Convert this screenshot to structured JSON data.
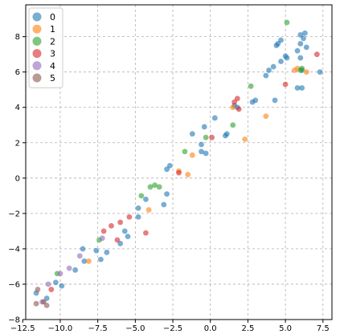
{
  "chart_data": {
    "type": "scatter",
    "title": "",
    "xlabel": "",
    "ylabel": "",
    "xlim": [
      -12.3,
      8.1
    ],
    "ylim": [
      -8,
      9.8
    ],
    "xticks": [
      -12.5,
      -10.0,
      -7.5,
      -5.0,
      -2.5,
      0.0,
      2.5,
      5.0,
      7.5
    ],
    "xtick_labels": [
      "−12.5",
      "−10.0",
      "−7.5",
      "−5.0",
      "−2.5",
      "0.0",
      "2.5",
      "5.0",
      "7.5"
    ],
    "yticks": [
      -8,
      -6,
      -4,
      -2,
      0,
      2,
      4,
      6,
      8
    ],
    "ytick_labels": [
      "−8",
      "−6",
      "−4",
      "−2",
      "0",
      "2",
      "4",
      "6",
      "8"
    ],
    "grid": true,
    "legend_position": "top-left",
    "series": [
      {
        "name": "0",
        "color": "#1f77b4",
        "points": [
          [
            -11.6,
            -6.5
          ],
          [
            -10.9,
            -6.8
          ],
          [
            -10.3,
            -5.9
          ],
          [
            -9.9,
            -6.1
          ],
          [
            -9.0,
            -5.2
          ],
          [
            -8.5,
            -4.0
          ],
          [
            -8.4,
            -4.7
          ],
          [
            -7.6,
            -4.1
          ],
          [
            -7.3,
            -4.6
          ],
          [
            -6.9,
            -4.2
          ],
          [
            -6.0,
            -3.7
          ],
          [
            -5.7,
            -3.0
          ],
          [
            -5.5,
            -3.3
          ],
          [
            -4.8,
            -2.2
          ],
          [
            -4.8,
            -1.7
          ],
          [
            -4.3,
            -1.2
          ],
          [
            -3.1,
            -1.5
          ],
          [
            -2.9,
            -0.9
          ],
          [
            -2.9,
            0.5
          ],
          [
            -2.7,
            0.7
          ],
          [
            -1.2,
            2.5
          ],
          [
            -0.6,
            1.9
          ],
          [
            -0.6,
            1.5
          ],
          [
            -0.3,
            1.4
          ],
          [
            -0.4,
            2.9
          ],
          [
            0.3,
            3.4
          ],
          [
            1.0,
            2.4
          ],
          [
            1.1,
            2.5
          ],
          [
            1.6,
            4.1
          ],
          [
            1.8,
            4.0
          ],
          [
            2.8,
            4.3
          ],
          [
            3.0,
            4.4
          ],
          [
            3.7,
            5.8
          ],
          [
            3.9,
            6.1
          ],
          [
            4.2,
            6.3
          ],
          [
            4.3,
            4.4
          ],
          [
            4.4,
            7.5
          ],
          [
            4.5,
            7.6
          ],
          [
            4.7,
            6.6
          ],
          [
            4.7,
            7.8
          ],
          [
            5.0,
            6.9
          ],
          [
            5.1,
            6.8
          ],
          [
            5.8,
            5.1
          ],
          [
            5.8,
            7.2
          ],
          [
            6.0,
            6.8
          ],
          [
            6.1,
            6.1
          ],
          [
            6.0,
            7.6
          ],
          [
            6.0,
            8.1
          ],
          [
            6.1,
            5.1
          ],
          [
            6.2,
            7.9
          ],
          [
            6.3,
            8.2
          ],
          [
            6.4,
            7.4
          ],
          [
            7.3,
            6.0
          ]
        ]
      },
      {
        "name": "1",
        "color": "#ff7f0e",
        "points": [
          [
            -8.1,
            -4.7
          ],
          [
            -4.1,
            -1.8
          ],
          [
            -2.1,
            0.4
          ],
          [
            -1.5,
            0.2
          ],
          [
            -1.2,
            1.3
          ],
          [
            1.5,
            4.0
          ],
          [
            2.3,
            2.2
          ],
          [
            3.7,
            3.5
          ],
          [
            5.6,
            6.1
          ],
          [
            5.8,
            6.2
          ],
          [
            6.4,
            6.0
          ]
        ]
      },
      {
        "name": "2",
        "color": "#2ca02c",
        "points": [
          [
            -10.2,
            -5.4
          ],
          [
            -7.4,
            -3.5
          ],
          [
            -4.6,
            -1.0
          ],
          [
            -4.0,
            -0.5
          ],
          [
            -3.7,
            -0.4
          ],
          [
            -3.4,
            -0.5
          ],
          [
            -1.7,
            1.5
          ],
          [
            -0.3,
            2.3
          ],
          [
            1.5,
            3.0
          ],
          [
            2.7,
            5.2
          ],
          [
            5.1,
            8.8
          ],
          [
            6.0,
            6.1
          ],
          [
            6.1,
            6.2
          ]
        ]
      },
      {
        "name": "3",
        "color": "#d62728",
        "points": [
          [
            -10.6,
            -6.3
          ],
          [
            -7.1,
            -3.0
          ],
          [
            -6.6,
            -2.7
          ],
          [
            -6.2,
            -3.5
          ],
          [
            -6.0,
            -2.5
          ],
          [
            -5.4,
            -2.2
          ],
          [
            -4.3,
            -3.1
          ],
          [
            -2.1,
            0.3
          ],
          [
            0.1,
            2.3
          ],
          [
            1.6,
            4.3
          ],
          [
            1.8,
            4.5
          ],
          [
            1.9,
            3.9
          ],
          [
            5.0,
            5.3
          ],
          [
            7.1,
            7.0
          ]
        ]
      },
      {
        "name": "4",
        "color": "#9467bd",
        "points": [
          [
            -11.2,
            -7.0
          ],
          [
            -10.8,
            -6.0
          ],
          [
            -10.0,
            -5.4
          ],
          [
            -9.4,
            -5.1
          ],
          [
            -8.7,
            -4.4
          ],
          [
            -7.2,
            -3.4
          ]
        ]
      },
      {
        "name": "5",
        "color": "#8c564b",
        "points": [
          [
            -11.6,
            -7.1
          ],
          [
            -11.5,
            -6.3
          ],
          [
            -11.1,
            -7.0
          ],
          [
            -10.9,
            -7.2
          ]
        ]
      }
    ]
  }
}
